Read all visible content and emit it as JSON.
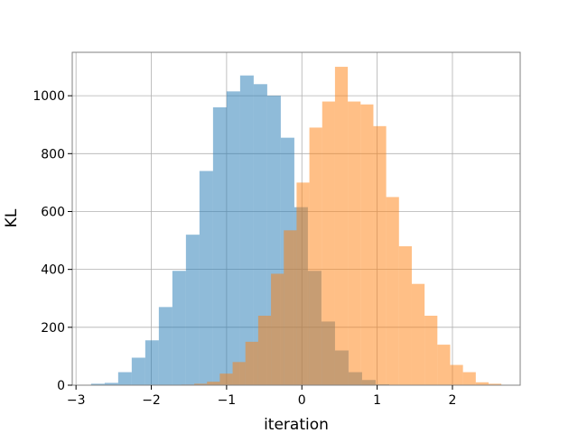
{
  "chart_data": {
    "type": "bar",
    "title": "",
    "xlabel": "iteration",
    "ylabel": "KL",
    "xlim": [
      -3.05,
      2.9
    ],
    "ylim": [
      0,
      1150
    ],
    "grid": true,
    "legend": "none",
    "xticks": [
      -3,
      -2,
      -1,
      0,
      1,
      2
    ],
    "yticks": [
      0,
      200,
      400,
      600,
      800,
      1000
    ],
    "xtick_labels": [
      "−3",
      "−2",
      "−1",
      "0",
      "1",
      "2"
    ],
    "ytick_labels": [
      "0",
      "200",
      "400",
      "600",
      "800",
      "1000"
    ],
    "series": [
      {
        "color": "#1f77b4",
        "opacity": 0.5,
        "bin_edges": [
          -2.8,
          -2.62,
          -2.44,
          -2.26,
          -2.08,
          -1.9,
          -1.72,
          -1.54,
          -1.36,
          -1.18,
          -1.0,
          -0.82,
          -0.64,
          -0.46,
          -0.28,
          -0.1,
          0.08,
          0.26,
          0.44,
          0.62,
          0.8,
          0.98,
          1.16
        ],
        "counts": [
          5,
          8,
          45,
          95,
          155,
          270,
          395,
          520,
          740,
          960,
          1015,
          1070,
          1040,
          1000,
          855,
          615,
          395,
          220,
          120,
          45,
          18,
          3
        ]
      },
      {
        "color": "#ff7f0e",
        "opacity": 0.5,
        "bin_edges": [
          -1.6,
          -1.43,
          -1.26,
          -1.09,
          -0.92,
          -0.75,
          -0.58,
          -0.41,
          -0.24,
          -0.07,
          0.1,
          0.27,
          0.44,
          0.61,
          0.78,
          0.95,
          1.12,
          1.29,
          1.46,
          1.63,
          1.8,
          1.97,
          2.14,
          2.31,
          2.48,
          2.65
        ],
        "counts": [
          2,
          5,
          12,
          40,
          80,
          150,
          240,
          385,
          535,
          700,
          890,
          980,
          1100,
          980,
          970,
          895,
          650,
          480,
          350,
          240,
          140,
          70,
          45,
          10,
          5
        ]
      }
    ]
  }
}
